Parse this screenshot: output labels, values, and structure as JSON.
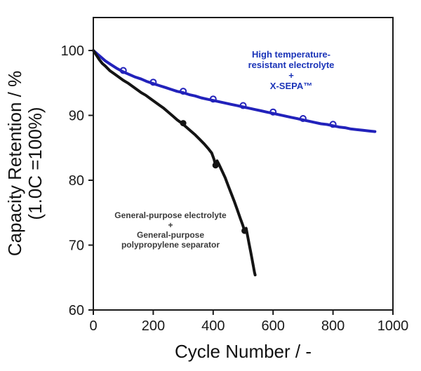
{
  "chart_data": {
    "type": "line",
    "title": "",
    "xlabel": "Cycle Number / -",
    "ylabel_line1": "Capacity Retention / %",
    "ylabel_line2": "(1.0C =100%)",
    "xlim": [
      0,
      1000
    ],
    "ylim": [
      60,
      100
    ],
    "x_ticks": [
      0,
      200,
      400,
      600,
      800,
      1000
    ],
    "y_ticks": [
      60,
      70,
      80,
      90,
      100
    ],
    "grid": false,
    "legend_position": "none",
    "axis_color": "#1a1a1a",
    "series": [
      {
        "name": "High temperature-resistant electrolyte + X-SEPA™",
        "color": "#2222bb",
        "line_width": 4,
        "marker": "open-circle",
        "marker_x": [
          100,
          200,
          300,
          400,
          500,
          600,
          700,
          800
        ],
        "points": [
          [
            0,
            100
          ],
          [
            20,
            99.2
          ],
          [
            40,
            98.4
          ],
          [
            60,
            97.8
          ],
          [
            80,
            97.2
          ],
          [
            100,
            96.7
          ],
          [
            120,
            96.3
          ],
          [
            140,
            95.9
          ],
          [
            160,
            95.6
          ],
          [
            180,
            95.2
          ],
          [
            200,
            94.9
          ],
          [
            220,
            94.6
          ],
          [
            240,
            94.3
          ],
          [
            260,
            94.0
          ],
          [
            280,
            93.7
          ],
          [
            300,
            93.5
          ],
          [
            320,
            93.2
          ],
          [
            340,
            93.0
          ],
          [
            360,
            92.7
          ],
          [
            380,
            92.5
          ],
          [
            400,
            92.3
          ],
          [
            420,
            92.1
          ],
          [
            440,
            91.9
          ],
          [
            460,
            91.7
          ],
          [
            480,
            91.5
          ],
          [
            500,
            91.3
          ],
          [
            520,
            91.1
          ],
          [
            540,
            90.9
          ],
          [
            560,
            90.7
          ],
          [
            580,
            90.5
          ],
          [
            600,
            90.3
          ],
          [
            620,
            90.1
          ],
          [
            640,
            89.9
          ],
          [
            660,
            89.7
          ],
          [
            680,
            89.5
          ],
          [
            700,
            89.3
          ],
          [
            720,
            89.1
          ],
          [
            740,
            88.9
          ],
          [
            760,
            88.7
          ],
          [
            780,
            88.6
          ],
          [
            800,
            88.4
          ],
          [
            820,
            88.2
          ],
          [
            840,
            88.1
          ],
          [
            860,
            87.9
          ],
          [
            880,
            87.8
          ],
          [
            900,
            87.7
          ],
          [
            920,
            87.6
          ],
          [
            940,
            87.5
          ]
        ]
      },
      {
        "name": "General-purpose electrolyte + General-purpose polypropylene separator",
        "color": "#141414",
        "line_width": 4,
        "marker": "none",
        "blob_points": [
          [
            300,
            88.8
          ],
          [
            408,
            82.3
          ],
          [
            505,
            72.2
          ]
        ],
        "points": [
          [
            0,
            100
          ],
          [
            10,
            99.3
          ],
          [
            20,
            98.6
          ],
          [
            30,
            98.0
          ],
          [
            40,
            97.6
          ],
          [
            55,
            96.9
          ],
          [
            70,
            96.4
          ],
          [
            85,
            95.9
          ],
          [
            100,
            95.4
          ],
          [
            115,
            95.0
          ],
          [
            130,
            94.5
          ],
          [
            145,
            94.0
          ],
          [
            160,
            93.5
          ],
          [
            175,
            93.1
          ],
          [
            190,
            92.6
          ],
          [
            205,
            92.1
          ],
          [
            220,
            91.6
          ],
          [
            235,
            91.1
          ],
          [
            250,
            90.5
          ],
          [
            265,
            89.9
          ],
          [
            280,
            89.3
          ],
          [
            295,
            88.8
          ],
          [
            310,
            88.2
          ],
          [
            325,
            87.6
          ],
          [
            340,
            87.0
          ],
          [
            355,
            86.3
          ],
          [
            370,
            85.6
          ],
          [
            385,
            84.8
          ],
          [
            395,
            84.2
          ],
          [
            403,
            83.2
          ],
          [
            408,
            82.3
          ],
          [
            413,
            83.0
          ],
          [
            420,
            82.4
          ],
          [
            430,
            81.4
          ],
          [
            440,
            80.4
          ],
          [
            450,
            79.2
          ],
          [
            460,
            78.0
          ],
          [
            470,
            76.8
          ],
          [
            480,
            75.5
          ],
          [
            490,
            74.2
          ],
          [
            498,
            73.2
          ],
          [
            505,
            72.2
          ],
          [
            510,
            72.6
          ],
          [
            515,
            71.4
          ],
          [
            520,
            70.2
          ],
          [
            525,
            69.0
          ],
          [
            530,
            67.8
          ],
          [
            534,
            66.8
          ],
          [
            538,
            65.8
          ],
          [
            540,
            65.4
          ]
        ]
      }
    ],
    "annotations": {
      "blue": {
        "color": "#1b34b8",
        "lines": [
          "High temperature-",
          "resistant electrolyte",
          "+",
          "X-SEPA™"
        ]
      },
      "black": {
        "color": "#3a3a3a",
        "lines": [
          "General-purpose electrolyte",
          "+",
          "General-purpose",
          "polypropylene separator"
        ]
      }
    }
  }
}
